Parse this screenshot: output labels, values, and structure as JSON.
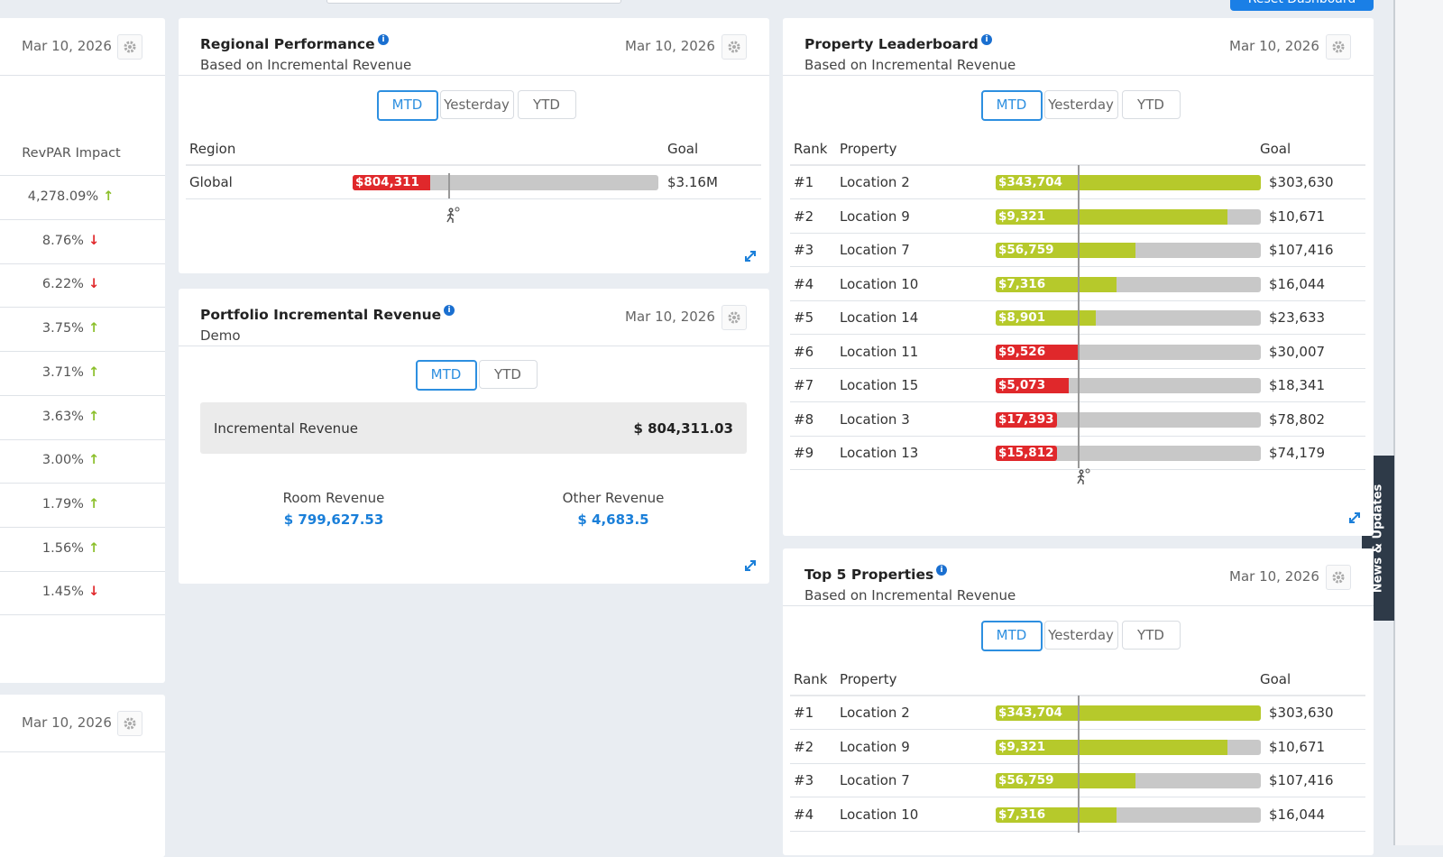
{
  "top_button": "Reset Dashboard",
  "news_tab": "News & Updates",
  "left_panel": {
    "date": "Mar 10, 2026",
    "column": "RevPAR Impact",
    "rows": [
      {
        "value": "4,278.09%",
        "arrow": "↑"
      },
      {
        "value": "8.76%",
        "arrow": "↓"
      },
      {
        "value": "6.22%",
        "arrow": "↓"
      },
      {
        "value": "3.75%",
        "arrow": "↑"
      },
      {
        "value": "3.71%",
        "arrow": "↑"
      },
      {
        "value": "3.63%",
        "arrow": "↑"
      },
      {
        "value": "3.00%",
        "arrow": "↑"
      },
      {
        "value": "1.79%",
        "arrow": "↑"
      },
      {
        "value": "1.56%",
        "arrow": "↑"
      },
      {
        "value": "1.45%",
        "arrow": "↓"
      }
    ]
  },
  "left_panel_2": {
    "date": "Mar 10, 2026"
  },
  "regional": {
    "title": "Regional Performance",
    "subtitle": "Based on Incremental Revenue",
    "date": "Mar 10, 2026",
    "tabs": [
      "MTD",
      "Yesterday",
      "YTD"
    ],
    "columns": [
      "Region",
      "Goal"
    ],
    "rows": [
      {
        "name": "Global",
        "value": 804311,
        "value_label": "$804,311",
        "goal": 3160000,
        "goal_label": "$3.16M",
        "color": "#e0282b"
      }
    ]
  },
  "portfolio": {
    "title": "Portfolio Incremental Revenue",
    "subtitle": "Demo",
    "date": "Mar 10, 2026",
    "tabs": [
      "MTD",
      "YTD"
    ],
    "total_label": "Incremental Revenue",
    "total": "$ 804,311.03",
    "items": [
      {
        "label": "Room Revenue",
        "value": "$ 799,627.53"
      },
      {
        "label": "Other Revenue",
        "value": "$ 4,683.5"
      }
    ]
  },
  "leaderboard": {
    "title": "Property Leaderboard",
    "subtitle": "Based on Incremental Revenue",
    "date": "Mar 10, 2026",
    "tabs": [
      "MTD",
      "Yesterday",
      "YTD"
    ],
    "columns": [
      "Rank",
      "Property",
      "Goal"
    ],
    "rows": [
      {
        "rank": "#1",
        "name": "Location 2",
        "value": 343704,
        "value_label": "$343,704",
        "goal": 303630,
        "goal_label": "$303,630",
        "color": "#b6c92b"
      },
      {
        "rank": "#2",
        "name": "Location 9",
        "value": 9321,
        "value_label": "$9,321",
        "goal": 10671,
        "goal_label": "$10,671",
        "color": "#b6c92b"
      },
      {
        "rank": "#3",
        "name": "Location 7",
        "value": 56759,
        "value_label": "$56,759",
        "goal": 107416,
        "goal_label": "$107,416",
        "color": "#b6c92b"
      },
      {
        "rank": "#4",
        "name": "Location 10",
        "value": 7316,
        "value_label": "$7,316",
        "goal": 16044,
        "goal_label": "$16,044",
        "color": "#b6c92b"
      },
      {
        "rank": "#5",
        "name": "Location 14",
        "value": 8901,
        "value_label": "$8,901",
        "goal": 23633,
        "goal_label": "$23,633",
        "color": "#b6c92b"
      },
      {
        "rank": "#6",
        "name": "Location 11",
        "value": 9526,
        "value_label": "$9,526",
        "goal": 30007,
        "goal_label": "$30,007",
        "color": "#e0282b"
      },
      {
        "rank": "#7",
        "name": "Location 15",
        "value": 5073,
        "value_label": "$5,073",
        "goal": 18341,
        "goal_label": "$18,341",
        "color": "#e0282b"
      },
      {
        "rank": "#8",
        "name": "Location 3",
        "value": 17393,
        "value_label": "$17,393",
        "goal": 78802,
        "goal_label": "$78,802",
        "color": "#e0282b"
      },
      {
        "rank": "#9",
        "name": "Location 13",
        "value": 15812,
        "value_label": "$15,812",
        "goal": 74179,
        "goal_label": "$74,179",
        "color": "#e0282b"
      }
    ]
  },
  "top5": {
    "title": "Top 5 Properties",
    "subtitle": "Based on Incremental Revenue",
    "date": "Mar 10, 2026",
    "tabs": [
      "MTD",
      "Yesterday",
      "YTD"
    ],
    "columns": [
      "Rank",
      "Property",
      "Goal"
    ],
    "rows": [
      {
        "rank": "#1",
        "name": "Location 2",
        "value": 343704,
        "value_label": "$343,704",
        "goal": 303630,
        "goal_label": "$303,630",
        "color": "#b6c92b"
      },
      {
        "rank": "#2",
        "name": "Location 9",
        "value": 9321,
        "value_label": "$9,321",
        "goal": 10671,
        "goal_label": "$10,671",
        "color": "#b6c92b"
      },
      {
        "rank": "#3",
        "name": "Location 7",
        "value": 56759,
        "value_label": "$56,759",
        "goal": 107416,
        "goal_label": "$107,416",
        "color": "#b6c92b"
      },
      {
        "rank": "#4",
        "name": "Location 10",
        "value": 7316,
        "value_label": "$7,316",
        "goal": 16044,
        "goal_label": "$16,044",
        "color": "#b6c92b"
      }
    ]
  }
}
